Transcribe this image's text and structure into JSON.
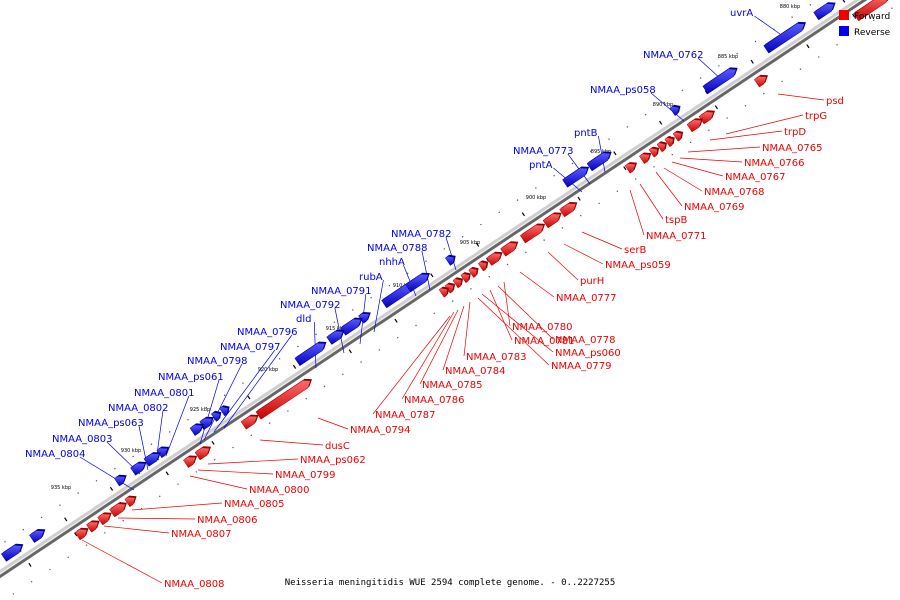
{
  "title": "Neisseria meningitidis WUE 2594 complete genome. - 0..2227255",
  "colors": {
    "forward": "#ee0000",
    "reverse": "#0000ee",
    "backbone": "#aaaaaa",
    "leader_forward": "#ee0000",
    "leader_reverse": "#0000ee"
  },
  "legend": [
    {
      "label": "Forward",
      "color": "#ee0000"
    },
    {
      "label": "Reverse",
      "color": "#0000ee"
    }
  ],
  "ticks": [
    "880 kbp",
    "885 kbp",
    "890 kbp",
    "895 kbp",
    "900 kbp",
    "905 kbp",
    "910 kbp",
    "915 kbp",
    "920 kbp",
    "925 kbp",
    "930 kbp",
    "935 kbp"
  ],
  "reverse_labels": [
    "uvrA",
    "NMAA_0762",
    "NMAA_ps058",
    "pntB",
    "NMAA_0773",
    "pntA",
    "NMAA_0782",
    "NMAA_0788",
    "nhhA",
    "rubA",
    "NMAA_0791",
    "NMAA_0792",
    "dld",
    "NMAA_0796",
    "NMAA_0797",
    "NMAA_0798",
    "NMAA_ps061",
    "NMAA_0801",
    "NMAA_0802",
    "NMAA_ps063",
    "NMAA_0803",
    "NMAA_0804"
  ],
  "forward_labels": [
    "psd",
    "trpG",
    "trpD",
    "NMAA_0765",
    "NMAA_0766",
    "NMAA_0767",
    "NMAA_0768",
    "NMAA_0769",
    "tspB",
    "NMAA_0771",
    "serB",
    "NMAA_ps059",
    "purH",
    "NMAA_0777",
    "NMAA_0780",
    "NMAA_0778",
    "NMAA_0781",
    "NMAA_ps060",
    "NMAA_0779",
    "NMAA_0783",
    "NMAA_0784",
    "NMAA_0785",
    "NMAA_0786",
    "NMAA_0787",
    "NMAA_0794",
    "dusC",
    "NMAA_ps062",
    "NMAA_0799",
    "NMAA_0800",
    "NMAA_0805",
    "NMAA_0806",
    "NMAA_0807",
    "NMAA_0808"
  ]
}
